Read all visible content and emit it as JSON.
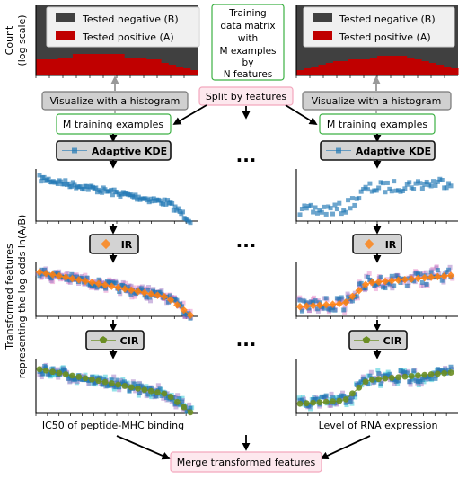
{
  "legend": {
    "negative": "Tested negative (B)",
    "positive": "Tested positive (A)"
  },
  "ylabel_count": "Count",
  "ylabel_count_scale": "(log scale)",
  "ylabel_transformed_line1": "Transformed features",
  "ylabel_transformed_line2": "representing the log odds ln(A/B)",
  "center": {
    "training_matrix": [
      "Training",
      "data matrix",
      "with",
      "M examples",
      "by",
      "N features"
    ],
    "split": "Split by features",
    "ellipsis": "..."
  },
  "visualize": "Visualize with a histogram",
  "training_examples": "M training examples",
  "methods": {
    "kde": "Adaptive KDE",
    "ir": "IR",
    "cir": "CIR"
  },
  "feature_labels": {
    "left": "IC50 of peptide-MHC binding",
    "right": "Level of RNA expression"
  },
  "merge": "Merge transformed features",
  "colors": {
    "negative": "#404040",
    "positive": "#c00000",
    "kde": "#1f77b4",
    "ir": "#ff7f0e",
    "cir": "#6b8e23",
    "green_border": "#3cb043",
    "pink_fill": "#fde8ee"
  },
  "icons": [
    "arrow-down-icon",
    "arrow-up-icon",
    "diagonal-arrow-icon",
    "kde-legend-marker-icon",
    "ir-legend-marker-icon",
    "cir-legend-marker-icon"
  ]
}
